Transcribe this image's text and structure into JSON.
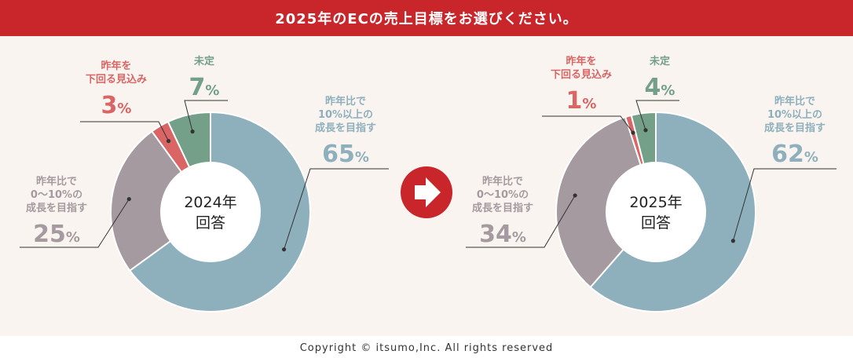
{
  "header": {
    "title": "2025年のECの売上目標をお選びください。"
  },
  "colors": {
    "header_bg": "#c9262b",
    "series": [
      "#8eb0bd",
      "#a59a9f",
      "#d96565",
      "#74a08a"
    ],
    "arrow": "#c9262b"
  },
  "chart_data": [
    {
      "type": "pie",
      "center_label": [
        "2024年",
        "回答"
      ],
      "categories": [
        "昨年比で10%以上の成長を目指す",
        "昨年比で0～10%の成長を目指す",
        "昨年を下回る見込み",
        "未定"
      ],
      "values": [
        65,
        25,
        3,
        7
      ],
      "labels": [
        {
          "lines": [
            "昨年比で",
            "10%以上の",
            "成長を目指す"
          ],
          "value": "65",
          "unit": "%"
        },
        {
          "lines": [
            "昨年比で",
            "0～10%の",
            "成長を目指す"
          ],
          "value": "25",
          "unit": "%"
        },
        {
          "lines": [
            "昨年を",
            "下回る見込み"
          ],
          "value": "3",
          "unit": "%"
        },
        {
          "lines": [
            "未定"
          ],
          "value": "7",
          "unit": "%"
        }
      ]
    },
    {
      "type": "pie",
      "center_label": [
        "2025年",
        "回答"
      ],
      "categories": [
        "昨年比で10%以上の成長を目指す",
        "昨年比で0～10%の成長を目指す",
        "昨年を下回る見込み",
        "未定"
      ],
      "values": [
        62,
        34,
        1,
        4
      ],
      "labels": [
        {
          "lines": [
            "昨年比で",
            "10%以上の",
            "成長を目指す"
          ],
          "value": "62",
          "unit": "%"
        },
        {
          "lines": [
            "昨年比で",
            "0～10%の",
            "成長を目指す"
          ],
          "value": "34",
          "unit": "%"
        },
        {
          "lines": [
            "昨年を",
            "下回る見込み"
          ],
          "value": "1",
          "unit": "%"
        },
        {
          "lines": [
            "未定"
          ],
          "value": "4",
          "unit": "%"
        }
      ]
    }
  ],
  "footer": {
    "copyright": "Copyright © itsumo,Inc. All rights reserved"
  }
}
